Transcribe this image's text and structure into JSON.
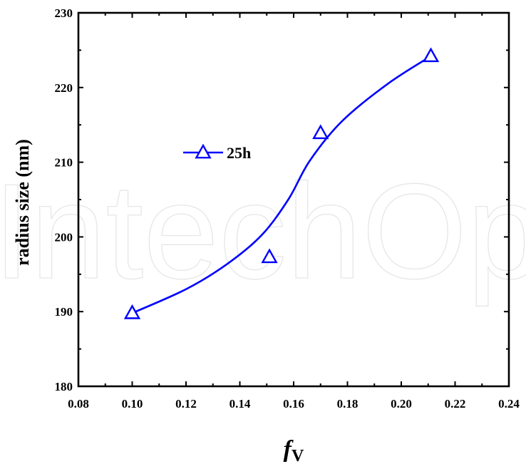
{
  "watermark": "IntechOpen",
  "chart_data": {
    "type": "line",
    "xlabel": "f",
    "xlabel_sub": "V",
    "ylabel": "radius size (nm)",
    "xlim": [
      0.08,
      0.24
    ],
    "ylim": [
      180,
      230
    ],
    "x_ticks": [
      "0.08",
      "0.10",
      "0.12",
      "0.14",
      "0.16",
      "0.18",
      "0.20",
      "0.22",
      "0.24"
    ],
    "y_ticks": [
      "180",
      "190",
      "200",
      "210",
      "220",
      "230"
    ],
    "x_tick_values": [
      0.08,
      0.1,
      0.12,
      0.14,
      0.16,
      0.18,
      0.2,
      0.22,
      0.24
    ],
    "y_tick_values": [
      180,
      190,
      200,
      210,
      220,
      230
    ],
    "grid": false,
    "legend_position": "upper-left",
    "series": [
      {
        "name": "25h",
        "color": "#0000ff",
        "marker": "triangle-open",
        "points": [
          {
            "x": 0.1,
            "y": 189.8
          },
          {
            "x": 0.151,
            "y": 197.3
          },
          {
            "x": 0.17,
            "y": 213.9
          },
          {
            "x": 0.211,
            "y": 224.2
          }
        ],
        "fit_curve": [
          {
            "x": 0.1,
            "y": 189.8
          },
          {
            "x": 0.12,
            "y": 193.0
          },
          {
            "x": 0.135,
            "y": 196.3
          },
          {
            "x": 0.148,
            "y": 200.2
          },
          {
            "x": 0.158,
            "y": 205.0
          },
          {
            "x": 0.166,
            "y": 210.2
          },
          {
            "x": 0.178,
            "y": 215.5
          },
          {
            "x": 0.195,
            "y": 220.5
          },
          {
            "x": 0.211,
            "y": 224.2
          }
        ]
      }
    ]
  }
}
